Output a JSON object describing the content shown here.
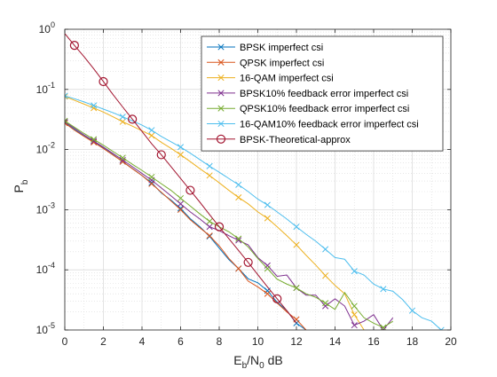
{
  "chart_data": {
    "type": "line",
    "xlabel_main": "E",
    "xlabel_sub1": "b",
    "xlabel_mid": "/N",
    "xlabel_sub2": "0",
    "xlabel_tail": " dB",
    "ylabel_main": "P",
    "ylabel_sub": "b",
    "xlim": [
      0,
      20
    ],
    "ylim": [
      1e-05,
      1
    ],
    "yscale": "log",
    "grid": true,
    "minor_grid": true,
    "legend_position": "top-right",
    "xticks": [
      {
        "value": 0,
        "label": "0"
      },
      {
        "value": 2,
        "label": "2"
      },
      {
        "value": 4,
        "label": "4"
      },
      {
        "value": 6,
        "label": "6"
      },
      {
        "value": 8,
        "label": "8"
      },
      {
        "value": 10,
        "label": "10"
      },
      {
        "value": 12,
        "label": "12"
      },
      {
        "value": 14,
        "label": "14"
      },
      {
        "value": 16,
        "label": "16"
      },
      {
        "value": 18,
        "label": "18"
      },
      {
        "value": 20,
        "label": "20"
      }
    ],
    "yticks": [
      {
        "value": 1,
        "exp": "0"
      },
      {
        "value": 0.1,
        "exp": "-1"
      },
      {
        "value": 0.01,
        "exp": "-2"
      },
      {
        "value": 0.001,
        "exp": "-3"
      },
      {
        "value": 0.0001,
        "exp": "-4"
      },
      {
        "value": 1e-05,
        "exp": "-5"
      }
    ],
    "ytick_base": "10",
    "series": [
      {
        "name": "BPSK imperfect csi",
        "color": "#0072bd",
        "marker": "x",
        "x": [
          0,
          0.5,
          1,
          1.5,
          2,
          2.5,
          3,
          3.5,
          4,
          4.5,
          5,
          5.5,
          6,
          6.5,
          7,
          7.5,
          8,
          8.5,
          9,
          9.5,
          10,
          10.5,
          11,
          11.5,
          12,
          12.5
        ],
        "y": [
          0.028,
          0.0215,
          0.0168,
          0.0134,
          0.0106,
          0.0082,
          0.0063,
          0.00485,
          0.0037,
          0.0028,
          0.0019,
          0.00145,
          0.00105,
          0.00071,
          0.00052,
          0.00036,
          0.00023,
          0.000148,
          0.000105,
          7.1e-05,
          6.1e-05,
          4.5e-05,
          2.9e-05,
          2.1e-05,
          1.3e-05,
          1e-05
        ]
      },
      {
        "name": "QPSK imperfect csi",
        "color": "#d95319",
        "marker": "x",
        "x": [
          0,
          0.5,
          1,
          1.5,
          2,
          2.5,
          3,
          3.5,
          4,
          4.5,
          5,
          5.5,
          6,
          6.5,
          7,
          7.5,
          8,
          8.5,
          9,
          9.5,
          10,
          10.5,
          11,
          11.5,
          12,
          12.5
        ],
        "y": [
          0.0275,
          0.021,
          0.0165,
          0.0132,
          0.0104,
          0.0081,
          0.0063,
          0.0048,
          0.0037,
          0.0027,
          0.00195,
          0.0014,
          0.001,
          0.00068,
          0.0005,
          0.00037,
          0.00025,
          0.000155,
          0.000105,
          6.5e-05,
          5.2e-05,
          4e-05,
          2.8e-05,
          2e-05,
          1.5e-05,
          1e-05
        ]
      },
      {
        "name": "16-QAM imperfect csi",
        "color": "#edb120",
        "marker": "x",
        "x": [
          0,
          0.5,
          1,
          1.5,
          2,
          2.5,
          3,
          3.5,
          4,
          4.5,
          5,
          5.5,
          6,
          6.5,
          7,
          7.5,
          8,
          8.5,
          9,
          9.5,
          10,
          10.5,
          11,
          11.5,
          12,
          12.5,
          13,
          13.5,
          14,
          14.5,
          15,
          15.5
        ],
        "y": [
          0.076,
          0.066,
          0.057,
          0.049,
          0.042,
          0.035,
          0.029,
          0.0245,
          0.0205,
          0.0171,
          0.0132,
          0.0105,
          0.0082,
          0.0063,
          0.0048,
          0.0037,
          0.0028,
          0.0021,
          0.0016,
          0.00125,
          0.00092,
          0.00072,
          0.00052,
          0.00037,
          0.00026,
          0.000175,
          0.00012,
          8e-05,
          5.5e-05,
          4e-05,
          1.8e-05,
          1e-05
        ]
      },
      {
        "name": "BPSK10% feedback error imperfect csi",
        "color": "#7e2f8e",
        "marker": "x",
        "x": [
          0,
          0.5,
          1,
          1.5,
          2,
          2.5,
          3,
          3.5,
          4,
          4.5,
          5,
          5.5,
          6,
          6.5,
          7,
          7.5,
          8,
          8.5,
          9,
          9.5,
          10,
          10.5,
          11,
          11.5,
          12,
          12.5,
          13,
          13.5,
          14,
          14.5,
          15,
          15.5,
          16,
          16.5,
          17
        ],
        "y": [
          0.029,
          0.0225,
          0.0175,
          0.0139,
          0.011,
          0.0086,
          0.0067,
          0.0052,
          0.004,
          0.0031,
          0.0023,
          0.0017,
          0.00125,
          0.00092,
          0.0007,
          0.00052,
          0.00045,
          0.00037,
          0.00031,
          0.00026,
          0.00016,
          0.000118,
          7.8e-05,
          8.2e-05,
          5e-05,
          3.8e-05,
          3.8e-05,
          2.5e-05,
          3.3e-05,
          2.5e-05,
          1.2e-05,
          1.4e-05,
          1.8e-05,
          1e-05,
          1.6e-05
        ]
      },
      {
        "name": "QPSK10% feedback error imperfect csi",
        "color": "#77ac30",
        "marker": "x",
        "x": [
          0,
          0.5,
          1,
          1.5,
          2,
          2.5,
          3,
          3.5,
          4,
          4.5,
          5,
          5.5,
          6,
          6.5,
          7,
          7.5,
          8,
          8.5,
          9,
          9.5,
          10,
          10.5,
          11,
          11.5,
          12,
          12.5,
          13,
          13.5,
          14,
          14.5,
          15,
          15.5,
          16,
          16.5,
          17
        ],
        "y": [
          0.03,
          0.0235,
          0.0185,
          0.0148,
          0.0118,
          0.0093,
          0.0073,
          0.0057,
          0.0045,
          0.0035,
          0.0027,
          0.0021,
          0.00155,
          0.00115,
          0.00085,
          0.00064,
          0.00052,
          0.00043,
          0.00033,
          0.00024,
          0.000155,
          0.000105,
          7e-05,
          5.8e-05,
          5e-05,
          4e-05,
          3.5e-05,
          2.8e-05,
          2.2e-05,
          4.2e-05,
          2.5e-05,
          1.6e-05,
          1.3e-05,
          1.1e-05,
          1.4e-05
        ]
      },
      {
        "name": "16-QAM10% feedback error imperfect csi",
        "color": "#4dbeee",
        "marker": "x",
        "x": [
          0,
          0.5,
          1,
          1.5,
          2,
          2.5,
          3,
          3.5,
          4,
          4.5,
          5,
          5.5,
          6,
          6.5,
          7,
          7.5,
          8,
          8.5,
          9,
          9.5,
          10,
          10.5,
          11,
          11.5,
          12,
          12.5,
          13,
          13.5,
          14,
          14.5,
          15,
          15.5,
          16,
          16.5,
          17,
          17.5,
          18,
          18.5,
          19,
          19.5
        ],
        "y": [
          0.078,
          0.07,
          0.062,
          0.054,
          0.047,
          0.041,
          0.035,
          0.03,
          0.0255,
          0.021,
          0.0165,
          0.0135,
          0.011,
          0.0087,
          0.0068,
          0.0053,
          0.0042,
          0.0033,
          0.0026,
          0.002,
          0.0015,
          0.0012,
          0.00092,
          0.0007,
          0.00052,
          0.00039,
          0.0003,
          0.00022,
          0.00016,
          0.00015,
          9.5e-05,
          8.2e-05,
          5.8e-05,
          4.8e-05,
          4.4e-05,
          3.2e-05,
          2.1e-05,
          1.6e-05,
          1.4e-05,
          1e-05
        ]
      },
      {
        "name": "BPSK-Theoretical-approx",
        "color": "#a2142f",
        "marker": "o",
        "line_x": [
          0,
          0.5,
          1,
          1.5,
          2,
          2.5,
          3,
          3.5,
          4,
          4.5,
          5,
          5.5,
          6,
          6.5,
          7,
          7.5,
          8,
          8.5,
          9,
          9.5,
          10,
          10.5,
          11,
          11.5,
          12
        ],
        "line_y": [
          0.85,
          0.54,
          0.35,
          0.22,
          0.135,
          0.082,
          0.051,
          0.032,
          0.02,
          0.0125,
          0.0082,
          0.0052,
          0.0033,
          0.0021,
          0.00133,
          0.00083,
          0.00052,
          0.00033,
          0.00021,
          0.000133,
          8.3e-05,
          5.2e-05,
          3.3e-05,
          2.1e-05,
          1.3e-05
        ],
        "marker_x": [
          0.5,
          2,
          3.5,
          5,
          6.5,
          8,
          9.5,
          11
        ],
        "marker_y": [
          0.54,
          0.135,
          0.032,
          0.0082,
          0.0021,
          0.00052,
          0.000133,
          3.3e-05
        ]
      }
    ]
  }
}
